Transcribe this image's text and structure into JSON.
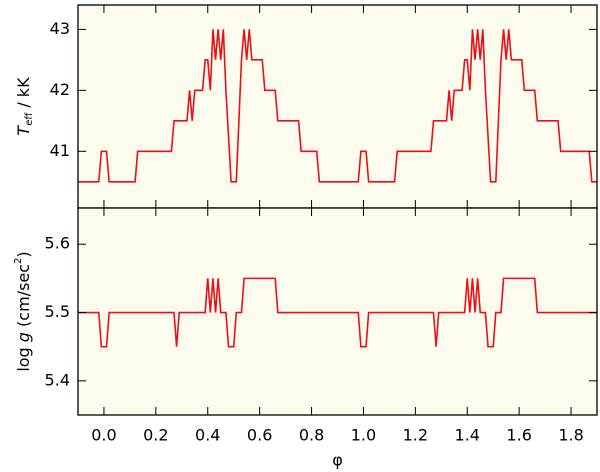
{
  "chart_data": [
    {
      "type": "line",
      "y_label": [
        {
          "text": "T",
          "style": "italic"
        },
        {
          "text": "eff",
          "style": "sub"
        },
        {
          "text": " / kK"
        }
      ],
      "x": [
        -0.1,
        -0.02,
        -0.01,
        0.01,
        0.02,
        0.12,
        0.13,
        0.26,
        0.27,
        0.32,
        0.33,
        0.34,
        0.35,
        0.38,
        0.39,
        0.4,
        0.41,
        0.42,
        0.43,
        0.44,
        0.45,
        0.46,
        0.47,
        0.49,
        0.51,
        0.53,
        0.54,
        0.55,
        0.56,
        0.57,
        0.61,
        0.62,
        0.66,
        0.67,
        0.75,
        0.76,
        0.82,
        0.83,
        0.98,
        0.99,
        1.01,
        1.02,
        1.12,
        1.13,
        1.26,
        1.27,
        1.32,
        1.33,
        1.34,
        1.35,
        1.38,
        1.39,
        1.4,
        1.41,
        1.42,
        1.43,
        1.44,
        1.45,
        1.46,
        1.47,
        1.49,
        1.51,
        1.53,
        1.54,
        1.55,
        1.56,
        1.57,
        1.61,
        1.62,
        1.66,
        1.67,
        1.75,
        1.76,
        1.87,
        1.88,
        1.9
      ],
      "series": [
        {
          "color": "#e8101a",
          "values": [
            40.5,
            40.5,
            41,
            41,
            40.5,
            40.5,
            41,
            41,
            41.5,
            41.5,
            42,
            41.5,
            42,
            42,
            42.5,
            42.5,
            42,
            43,
            42.5,
            43,
            42.5,
            43,
            42,
            40.5,
            40.5,
            42.5,
            43,
            42.5,
            43,
            42.5,
            42.5,
            42,
            42,
            41.5,
            41.5,
            41,
            41,
            40.5,
            40.5,
            41,
            41,
            40.5,
            40.5,
            41,
            41,
            41.5,
            41.5,
            42,
            41.5,
            42,
            42,
            42.5,
            42.5,
            42,
            43,
            42.5,
            43,
            42.5,
            43,
            42,
            40.5,
            40.5,
            42.5,
            43,
            42.5,
            43,
            42.5,
            42.5,
            42,
            42,
            41.5,
            41.5,
            41,
            41,
            40.5,
            40.5
          ]
        }
      ],
      "xlim": [
        -0.1,
        1.9
      ],
      "xticks": [
        {
          "value": 0,
          "label": "0.0"
        },
        {
          "value": 0.2,
          "label": "0.2"
        },
        {
          "value": 0.4,
          "label": "0.4"
        },
        {
          "value": 0.6,
          "label": "0.6"
        },
        {
          "value": 0.8,
          "label": "0.8"
        },
        {
          "value": 1,
          "label": "1.0"
        },
        {
          "value": 1.2,
          "label": "1.2"
        },
        {
          "value": 1.4,
          "label": "1.4"
        },
        {
          "value": 1.6,
          "label": "1.6"
        },
        {
          "value": 1.8,
          "label": "1.8"
        }
      ],
      "show_xtick_labels": false,
      "ylim": [
        40.07,
        43.4
      ],
      "yticks": [
        41,
        42,
        43
      ],
      "background": "#fcfbee"
    },
    {
      "type": "line",
      "y_label": [
        {
          "text": "log "
        },
        {
          "text": "g",
          "style": "italic"
        },
        {
          "text": " (cm/sec"
        },
        {
          "text": "2",
          "style": "sup"
        },
        {
          "text": ")"
        }
      ],
      "x_label": "φ",
      "x": [
        -0.1,
        -0.02,
        -0.01,
        0.01,
        0.02,
        0.27,
        0.28,
        0.29,
        0.39,
        0.4,
        0.41,
        0.42,
        0.43,
        0.44,
        0.45,
        0.47,
        0.48,
        0.5,
        0.51,
        0.53,
        0.54,
        0.66,
        0.67,
        0.98,
        0.99,
        1.01,
        1.02,
        1.27,
        1.28,
        1.29,
        1.39,
        1.4,
        1.41,
        1.42,
        1.43,
        1.44,
        1.45,
        1.47,
        1.48,
        1.5,
        1.51,
        1.53,
        1.54,
        1.66,
        1.67,
        1.9
      ],
      "series": [
        {
          "color": "#e8101a",
          "values": [
            5.5,
            5.5,
            5.45,
            5.45,
            5.5,
            5.5,
            5.45,
            5.5,
            5.5,
            5.55,
            5.5,
            5.55,
            5.5,
            5.55,
            5.5,
            5.5,
            5.45,
            5.45,
            5.5,
            5.5,
            5.55,
            5.55,
            5.5,
            5.5,
            5.45,
            5.45,
            5.5,
            5.5,
            5.45,
            5.5,
            5.5,
            5.55,
            5.5,
            5.55,
            5.5,
            5.55,
            5.5,
            5.5,
            5.45,
            5.45,
            5.5,
            5.5,
            5.55,
            5.55,
            5.5,
            5.5
          ]
        }
      ],
      "xlim": [
        -0.1,
        1.9
      ],
      "xticks": [
        {
          "value": 0,
          "label": "0.0"
        },
        {
          "value": 0.2,
          "label": "0.2"
        },
        {
          "value": 0.4,
          "label": "0.4"
        },
        {
          "value": 0.6,
          "label": "0.6"
        },
        {
          "value": 0.8,
          "label": "0.8"
        },
        {
          "value": 1,
          "label": "1.0"
        },
        {
          "value": 1.2,
          "label": "1.2"
        },
        {
          "value": 1.4,
          "label": "1.4"
        },
        {
          "value": 1.6,
          "label": "1.6"
        },
        {
          "value": 1.8,
          "label": "1.8"
        }
      ],
      "show_xtick_labels": true,
      "ylim": [
        5.35,
        5.653
      ],
      "yticks": [
        5.4,
        5.5,
        5.6
      ],
      "background": "#fcfbee"
    }
  ]
}
